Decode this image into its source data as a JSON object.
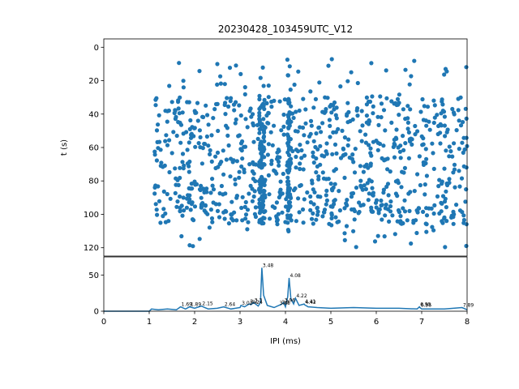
{
  "figure": {
    "title": "20230428_103459UTC_V12",
    "xlabel": "IPI (ms)",
    "ylabel_top": "t (s)",
    "color": "#1f77b4"
  },
  "chart_data": [
    {
      "type": "scatter",
      "panel": "raster",
      "xlim": [
        0,
        8
      ],
      "ylim": [
        125,
        -5
      ],
      "y_inverted": true,
      "y_ticks": [
        "0",
        "20",
        "40",
        "60",
        "80",
        "100",
        "120"
      ],
      "ylabel": "t (s)",
      "marker": "dot",
      "point_count_estimate": 1100,
      "x_range_of_points": [
        1.0,
        8.0
      ],
      "y_range_of_points": [
        2,
        120
      ],
      "dense_columns_x": [
        3.48,
        4.08
      ],
      "note_points": "Scatter of inter-pulse intervals over time; columns densest near 3.48 ms and 4.08 ms."
    },
    {
      "type": "line",
      "panel": "histogram",
      "xlim": [
        0,
        8
      ],
      "ylim": [
        0,
        75
      ],
      "x_ticks": [
        "0",
        "1",
        "2",
        "3",
        "4",
        "5",
        "6",
        "7",
        "8"
      ],
      "y_ticks": [
        "0",
        "50"
      ],
      "xlabel": "IPI (ms)",
      "x": [
        0,
        0.5,
        1.0,
        1.05,
        1.2,
        1.4,
        1.6,
        1.69,
        1.8,
        1.89,
        2.0,
        2.15,
        2.3,
        2.5,
        2.64,
        2.8,
        3.0,
        3.02,
        3.1,
        3.2,
        3.24,
        3.3,
        3.4,
        3.45,
        3.48,
        3.52,
        3.6,
        3.75,
        3.85,
        3.9,
        3.96,
        4.0,
        4.05,
        4.08,
        4.12,
        4.18,
        4.22,
        4.3,
        4.41,
        4.42,
        4.5,
        4.7,
        5.0,
        5.5,
        6.0,
        6.5,
        6.9,
        6.95,
        6.96,
        7.0,
        7.5,
        7.89,
        8.0
      ],
      "y": [
        0,
        0,
        0,
        3,
        2,
        3,
        2,
        6,
        3,
        6,
        4,
        7,
        3,
        4,
        6,
        3,
        5,
        8,
        6,
        10,
        9,
        12,
        7,
        12,
        60,
        22,
        8,
        5,
        8,
        9,
        12,
        6,
        20,
        46,
        17,
        10,
        18,
        8,
        10,
        9,
        6,
        5,
        4,
        5,
        4,
        4,
        3,
        6,
        5,
        3,
        3,
        5,
        2
      ],
      "annotations": [
        {
          "x": 1.69,
          "y": 6,
          "label": "1.69"
        },
        {
          "x": 1.89,
          "y": 6,
          "label": "1.89"
        },
        {
          "x": 2.15,
          "y": 7,
          "label": "2.15"
        },
        {
          "x": 2.64,
          "y": 6,
          "label": "2.64"
        },
        {
          "x": 3.02,
          "y": 8,
          "label": "3.02"
        },
        {
          "x": 3.2,
          "y": 10,
          "label": "3.2"
        },
        {
          "x": 3.24,
          "y": 9,
          "label": "3.24"
        },
        {
          "x": 3.3,
          "y": 12,
          "label": "3.3"
        },
        {
          "x": 3.48,
          "y": 60,
          "label": "3.48"
        },
        {
          "x": 3.85,
          "y": 8,
          "label": "3.85"
        },
        {
          "x": 3.96,
          "y": 12,
          "label": "3.96"
        },
        {
          "x": 3.9,
          "y": 9,
          "label": "3.9"
        },
        {
          "x": 4.08,
          "y": 46,
          "label": "4.08"
        },
        {
          "x": 4.22,
          "y": 18,
          "label": "4.22"
        },
        {
          "x": 4.41,
          "y": 10,
          "label": "4.41"
        },
        {
          "x": 4.42,
          "y": 9,
          "label": "4.42"
        },
        {
          "x": 6.95,
          "y": 6,
          "label": "6.95"
        },
        {
          "x": 6.96,
          "y": 5,
          "label": "6.96"
        },
        {
          "x": 7.89,
          "y": 5,
          "label": "7.89"
        }
      ]
    }
  ]
}
